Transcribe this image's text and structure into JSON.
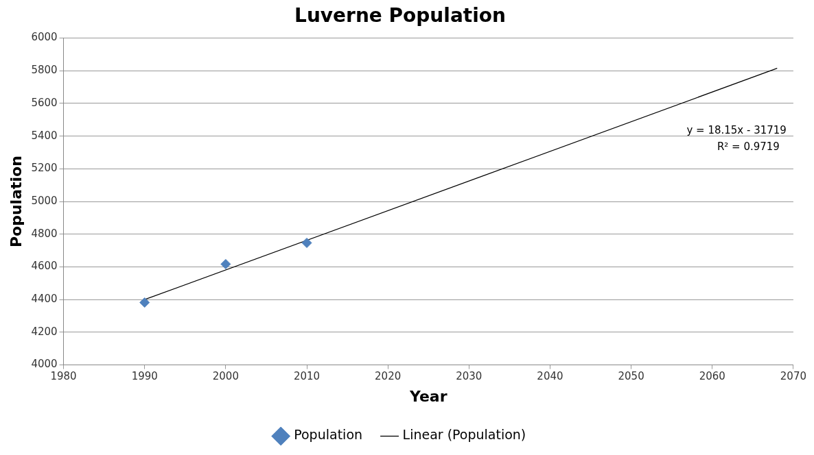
{
  "chart_data": {
    "type": "scatter",
    "title": "Luverne Population",
    "xlabel": "Year",
    "ylabel": "Population",
    "series": [
      {
        "name": "Population",
        "color": "#4f81bd",
        "x": [
          1990,
          2000,
          2010
        ],
        "values": [
          4382,
          4617,
          4747
        ],
        "marker": "diamond"
      },
      {
        "name": "Linear (Population)",
        "type": "line",
        "color": "#000000",
        "x": [
          1990,
          2068
        ],
        "values": [
          4400,
          5815
        ],
        "marker": "none"
      }
    ],
    "annotations": [
      "y = 18.15x - 31719",
      "R² = 0.9719"
    ],
    "xlim": [
      1980,
      2070
    ],
    "xticks": [
      1980,
      1990,
      2000,
      2010,
      2020,
      2030,
      2040,
      2050,
      2060,
      2070
    ],
    "ylim": [
      4000,
      6000
    ],
    "yticks": [
      4000,
      4200,
      4400,
      4600,
      4800,
      5000,
      5200,
      5400,
      5600,
      5800,
      6000
    ],
    "grid": "y",
    "legend": "bottom"
  }
}
